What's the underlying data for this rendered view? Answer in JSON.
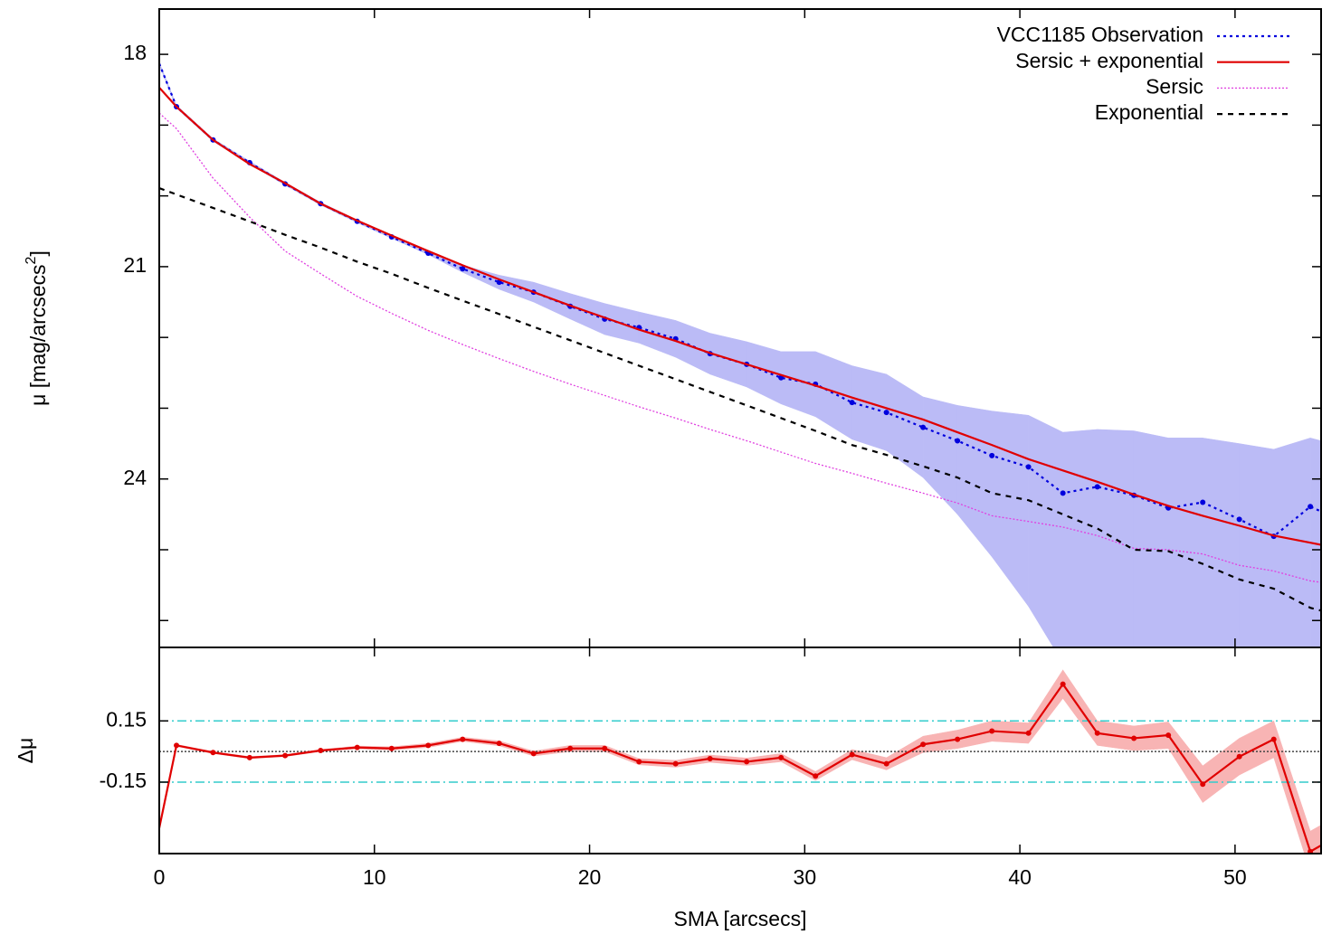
{
  "chart_data": [
    {
      "type": "line",
      "ylabel": {
        "text": "μ [mag/arcsecs",
        "sup": "2",
        "end": "]"
      },
      "xlim": [
        0,
        54
      ],
      "xticks": [
        0,
        10,
        20,
        30,
        40,
        50
      ],
      "ylim": [
        17.36,
        26.38
      ],
      "y_inverted": true,
      "yticks": [
        18,
        21,
        24
      ],
      "yminorticks": [
        19,
        20,
        22,
        23,
        25,
        26
      ],
      "legend": "upper right",
      "x": [
        0,
        0.8,
        2.5,
        4.2,
        5.85,
        7.5,
        9.2,
        10.8,
        12.5,
        14.1,
        15.8,
        17.4,
        19.1,
        20.7,
        22.3,
        24.0,
        25.6,
        27.3,
        28.9,
        30.5,
        32.2,
        33.8,
        35.5,
        37.1,
        38.7,
        40.4,
        42.0,
        43.6,
        45.3,
        46.9,
        48.5,
        50.2,
        51.8,
        53.5,
        54
      ],
      "bands": [
        {
          "color": "#bbbbf6",
          "lower": [
            18.11,
            18.72,
            19.19,
            19.51,
            19.81,
            20.09,
            20.34,
            20.56,
            20.79,
            20.98,
            21.12,
            21.22,
            21.38,
            21.52,
            21.64,
            21.76,
            21.94,
            22.06,
            22.2,
            22.2,
            22.4,
            22.52,
            22.84,
            22.96,
            23.04,
            23.1,
            23.34,
            23.3,
            23.32,
            23.42,
            23.42,
            23.5,
            23.58,
            23.42,
            23.46
          ],
          "upper": [
            18.15,
            18.76,
            19.23,
            19.55,
            19.85,
            20.13,
            20.38,
            20.6,
            20.83,
            21.08,
            21.32,
            21.5,
            21.74,
            21.96,
            22.08,
            22.28,
            22.52,
            22.7,
            22.94,
            23.12,
            23.44,
            23.6,
            23.98,
            24.5,
            25.1,
            25.8,
            26.6,
            26.6,
            26.6,
            26.6,
            26.6,
            26.6,
            26.6,
            26.6,
            26.6
          ]
        }
      ],
      "series": [
        {
          "name": "VCC1185 Observation",
          "color": "#0000dd",
          "style": "dotted",
          "markers": true,
          "values": [
            18.13,
            18.74,
            19.21,
            19.53,
            19.83,
            20.11,
            20.36,
            20.58,
            20.81,
            21.03,
            21.22,
            21.36,
            21.56,
            21.74,
            21.86,
            22.02,
            22.23,
            22.38,
            22.57,
            22.66,
            22.92,
            23.06,
            23.27,
            23.46,
            23.67,
            23.83,
            24.2,
            24.11,
            24.23,
            24.41,
            24.33,
            24.57,
            24.81,
            24.39,
            24.46
          ]
        },
        {
          "name": "Sersic + exponential",
          "color": "#e00000",
          "style": "solid",
          "markers": false,
          "values": [
            18.47,
            18.74,
            19.21,
            19.55,
            19.82,
            20.11,
            20.35,
            20.56,
            20.78,
            20.98,
            21.18,
            21.36,
            21.55,
            21.72,
            21.89,
            22.05,
            22.22,
            22.38,
            22.53,
            22.68,
            22.85,
            23.0,
            23.16,
            23.34,
            23.52,
            23.72,
            23.88,
            24.04,
            24.22,
            24.38,
            24.52,
            24.66,
            24.8,
            24.9,
            24.93
          ]
        },
        {
          "name": "Sersic",
          "color": "#e040e0",
          "style": "fine",
          "markers": false,
          "values": [
            18.83,
            19.05,
            19.75,
            20.3,
            20.78,
            21.1,
            21.42,
            21.66,
            21.9,
            22.1,
            22.3,
            22.48,
            22.66,
            22.82,
            22.98,
            23.14,
            23.3,
            23.46,
            23.62,
            23.78,
            23.92,
            24.06,
            24.2,
            24.34,
            24.52,
            24.6,
            24.68,
            24.8,
            24.98,
            25.0,
            25.06,
            25.22,
            25.3,
            25.44,
            25.46
          ]
        },
        {
          "name": "Exponential",
          "color": "#000000",
          "style": "dashed",
          "markers": false,
          "values": [
            19.89,
            19.98,
            20.17,
            20.36,
            20.55,
            20.73,
            20.93,
            21.1,
            21.3,
            21.48,
            21.67,
            21.85,
            22.04,
            22.22,
            22.4,
            22.59,
            22.77,
            22.96,
            23.14,
            23.32,
            23.52,
            23.66,
            23.82,
            23.98,
            24.2,
            24.3,
            24.5,
            24.7,
            25.0,
            25.02,
            25.2,
            25.42,
            25.55,
            25.82,
            25.86
          ]
        }
      ]
    },
    {
      "type": "line",
      "xlabel": "SMA [arcsecs]",
      "ylabel": "Δμ",
      "xlim": [
        0,
        54
      ],
      "xticks": [
        0,
        10,
        20,
        30,
        40,
        50
      ],
      "ylim": [
        -0.5,
        0.51
      ],
      "yticks": [
        0.15,
        -0.15
      ],
      "hlines": [
        {
          "value": 0.15,
          "color": "#33cccc",
          "style": "dashdot"
        },
        {
          "value": -0.15,
          "color": "#33cccc",
          "style": "dashdot"
        },
        {
          "value": 0,
          "color": "#444444",
          "style": "fine"
        }
      ],
      "x": [
        0,
        0.8,
        2.5,
        4.2,
        5.85,
        7.5,
        9.2,
        10.8,
        12.5,
        14.1,
        15.8,
        17.4,
        19.1,
        20.7,
        22.3,
        24.0,
        25.6,
        27.3,
        28.9,
        30.5,
        32.2,
        33.8,
        35.5,
        37.1,
        38.7,
        40.4,
        42.0,
        43.6,
        45.3,
        46.9,
        48.5,
        50.2,
        51.8,
        53.5,
        54
      ],
      "series": [
        {
          "color": "#e00000",
          "band_color": "#f8b4b4",
          "style": "solid",
          "markers": true,
          "values": [
            -0.375,
            0.03,
            -0.005,
            -0.03,
            -0.02,
            0.005,
            0.02,
            0.015,
            0.03,
            0.06,
            0.04,
            -0.01,
            0.015,
            0.015,
            -0.05,
            -0.06,
            -0.035,
            -0.05,
            -0.03,
            -0.12,
            -0.015,
            -0.06,
            0.035,
            0.06,
            0.1,
            0.09,
            0.33,
            0.09,
            0.065,
            0.08,
            -0.16,
            -0.025,
            0.06,
            -0.49,
            -0.46
          ],
          "errors": [
            0.005,
            0.005,
            0.005,
            0.005,
            0.005,
            0.005,
            0.007,
            0.008,
            0.01,
            0.01,
            0.012,
            0.012,
            0.015,
            0.015,
            0.015,
            0.017,
            0.018,
            0.018,
            0.02,
            0.022,
            0.025,
            0.03,
            0.04,
            0.045,
            0.05,
            0.05,
            0.07,
            0.06,
            0.06,
            0.065,
            0.09,
            0.09,
            0.09,
            0.1,
            0.1
          ]
        }
      ]
    }
  ]
}
